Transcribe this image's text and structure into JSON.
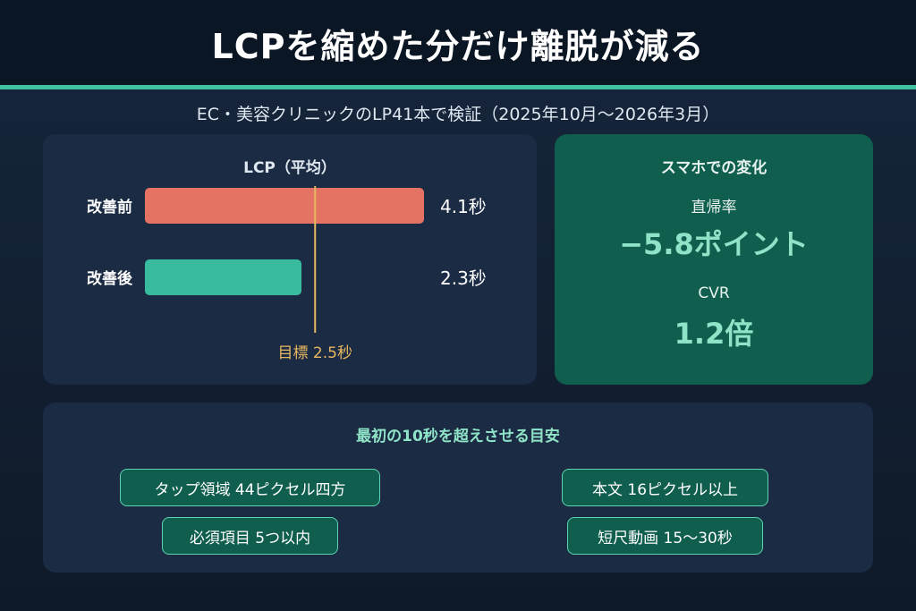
{
  "header": {
    "title": "LCPを縮めた分だけ離脱が減る"
  },
  "subtitle": "EC・美容クリニックのLP41本で検証（2025年10月〜2026年3月）",
  "colors": {
    "accent": "#3fc1a0",
    "before_bar": "#e57363",
    "after_bar": "#38bb9f",
    "target_line": "#e8b860",
    "stats_panel": "#0f5e4e",
    "highlight_text": "#8fe3c7"
  },
  "chart_data": {
    "type": "bar",
    "orientation": "horizontal",
    "title": "LCP（平均）",
    "categories": [
      "改善前",
      "改善後"
    ],
    "values": [
      4.1,
      2.3
    ],
    "value_labels": [
      "4.1秒",
      "2.3秒"
    ],
    "unit": "秒",
    "target": {
      "value": 2.5,
      "label": "目標 2.5秒"
    },
    "xlim": [
      0,
      4.1
    ],
    "grid": false,
    "legend": "none"
  },
  "stats": {
    "title": "スマホでの変化",
    "items": [
      {
        "label": "直帰率",
        "value": "−5.8ポイント"
      },
      {
        "label": "CVR",
        "value": "1.2倍"
      }
    ]
  },
  "tips": {
    "title": "最初の10秒を超えさせる目安",
    "items": [
      "タップ領域 44ピクセル四方",
      "本文 16ピクセル以上",
      "必須項目 5つ以内",
      "短尺動画 15〜30秒"
    ]
  }
}
